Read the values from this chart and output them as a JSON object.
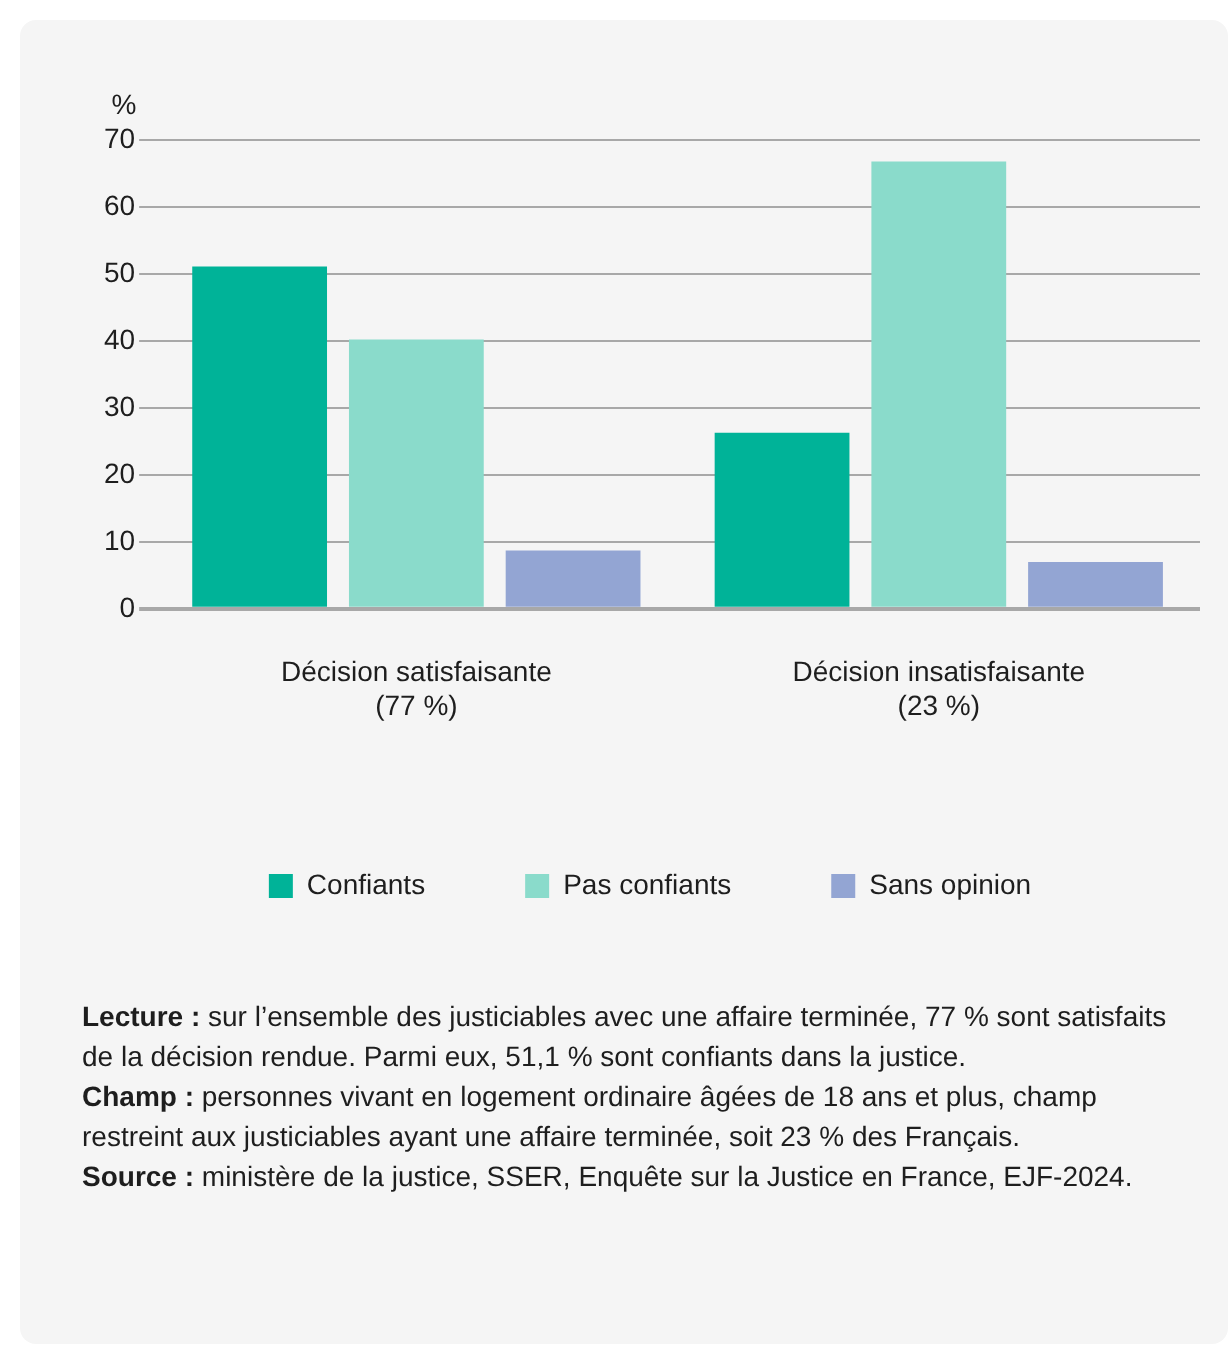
{
  "chart_data": {
    "type": "bar",
    "ylabel": "%",
    "categories": [
      "Décision satisfaisante\n(77 %)",
      "Décision insatisfaisante\n(23 %)"
    ],
    "series": [
      {
        "name": "Confiants",
        "color": "#00b398",
        "values": [
          51.1,
          26.3
        ]
      },
      {
        "name": "Pas confiants",
        "color": "#8adbcb",
        "values": [
          40.2,
          66.8
        ]
      },
      {
        "name": "Sans opinion",
        "color": "#93a5d3",
        "values": [
          8.7,
          7.0
        ]
      }
    ],
    "ylim": [
      0,
      70
    ],
    "yticks": [
      0,
      10,
      20,
      30,
      40,
      50,
      60,
      70
    ],
    "grid": "y",
    "legend": "bottom",
    "annotations": [
      "Lecture : sur l’ensemble des justiciables avec une affaire terminée, 77 % sont satisfaits de la décision rendue. Parmi eux, 51,1 % sont confiants dans la justice.",
      "Champ : personnes vivant en logement ordinaire âgées de 18 ans et plus, champ restreint aux justiciables ayant une affaire terminée, soit 23 % des Français.",
      "Source : ministère de la justice, SSER, Enquête sur la Justice en France, EJF-2024."
    ]
  }
}
